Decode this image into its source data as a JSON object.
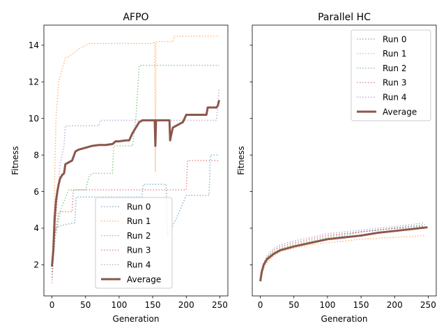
{
  "chart_data": [
    {
      "type": "line",
      "title": "AFPO",
      "xlabel": "Generation",
      "ylabel": "Fitness",
      "xlim": [
        -12,
        262
      ],
      "ylim": [
        0.3,
        15.1
      ],
      "xticks": [
        0,
        50,
        100,
        150,
        200,
        250
      ],
      "yticks": [
        2,
        4,
        6,
        8,
        10,
        12,
        14
      ],
      "legend": "lower-center",
      "series": [
        {
          "name": "Run 0",
          "color": "#1f77b4",
          "style": "dotted",
          "x": [
            0,
            3,
            6,
            10,
            20,
            34,
            36,
            70,
            134,
            136,
            170,
            172,
            185,
            200,
            202,
            234,
            236,
            249
          ],
          "y": [
            2.0,
            3.5,
            4.0,
            4.1,
            4.2,
            4.3,
            5.7,
            5.7,
            5.7,
            6.4,
            6.4,
            3.6,
            4.5,
            5.8,
            5.8,
            5.8,
            8.0,
            8.0
          ]
        },
        {
          "name": "Run 1",
          "color": "#ff7f0e",
          "style": "dotted",
          "x": [
            0,
            3,
            6,
            10,
            20,
            30,
            40,
            55,
            70,
            100,
            150,
            153,
            154,
            155,
            157,
            160,
            180,
            182,
            200,
            249
          ],
          "y": [
            1.6,
            5.0,
            10.0,
            12.0,
            13.3,
            13.5,
            13.8,
            14.1,
            14.1,
            14.1,
            14.1,
            14.2,
            7.1,
            14.2,
            14.2,
            14.2,
            14.2,
            14.5,
            14.5,
            14.5
          ]
        },
        {
          "name": "Run 2",
          "color": "#2ca02c",
          "style": "dotted",
          "x": [
            0,
            5,
            10,
            15,
            25,
            35,
            50,
            55,
            60,
            90,
            92,
            120,
            125,
            130,
            135,
            200,
            249
          ],
          "y": [
            1.6,
            3.5,
            4.5,
            5.2,
            6.1,
            6.1,
            6.1,
            6.8,
            7.0,
            7.0,
            8.5,
            8.5,
            10.0,
            12.9,
            12.9,
            12.9,
            12.9
          ]
        },
        {
          "name": "Run 3",
          "color": "#d62728",
          "style": "dotted",
          "x": [
            0,
            4,
            10,
            30,
            32,
            100,
            200,
            202,
            230,
            249
          ],
          "y": [
            1.3,
            3.5,
            4.9,
            4.9,
            6.1,
            6.1,
            6.1,
            7.7,
            7.7,
            7.7
          ]
        },
        {
          "name": "Run 4",
          "color": "#9467bd",
          "style": "dotted",
          "x": [
            0,
            2,
            4,
            8,
            12,
            18,
            20,
            40,
            70,
            72,
            120,
            150,
            200,
            245,
            249
          ],
          "y": [
            1.0,
            2.5,
            4.0,
            5.5,
            7.5,
            8.5,
            9.6,
            9.6,
            9.6,
            9.9,
            9.9,
            9.9,
            9.9,
            9.9,
            11.6
          ]
        },
        {
          "name": "Average",
          "color": "#8c564b",
          "style": "solid",
          "x": [
            0,
            2,
            4,
            6,
            8,
            10,
            12,
            15,
            18,
            20,
            25,
            30,
            35,
            40,
            50,
            60,
            70,
            80,
            90,
            95,
            100,
            110,
            115,
            120,
            125,
            130,
            135,
            140,
            150,
            153,
            154,
            155,
            156,
            160,
            170,
            175,
            176,
            177,
            180,
            190,
            195,
            200,
            202,
            210,
            220,
            230,
            232,
            240,
            245,
            247,
            249
          ],
          "y": [
            1.9,
            2.8,
            4.5,
            5.5,
            6.0,
            6.4,
            6.7,
            6.9,
            7.0,
            7.5,
            7.6,
            7.7,
            8.2,
            8.3,
            8.4,
            8.5,
            8.55,
            8.55,
            8.6,
            8.75,
            8.75,
            8.8,
            8.8,
            9.2,
            9.5,
            9.8,
            9.9,
            9.9,
            9.9,
            9.9,
            8.5,
            9.9,
            9.9,
            9.9,
            9.9,
            9.9,
            8.8,
            9.0,
            9.5,
            9.7,
            9.8,
            10.2,
            10.2,
            10.2,
            10.2,
            10.2,
            10.6,
            10.6,
            10.6,
            10.7,
            11.0
          ]
        }
      ]
    },
    {
      "type": "line",
      "title": "Parallel HC",
      "xlabel": "Generation",
      "ylabel": "Fitness",
      "xlim": [
        -12,
        262
      ],
      "ylim": [
        0.3,
        15.1
      ],
      "xticks": [
        0,
        50,
        100,
        150,
        200,
        250
      ],
      "yticks": [
        2,
        4,
        6,
        8,
        10,
        12,
        14
      ],
      "legend": "upper-right",
      "series": [
        {
          "name": "Run 0",
          "color": "#1f77b4",
          "style": "dotted",
          "x": [
            0,
            2,
            5,
            10,
            20,
            30,
            50,
            75,
            100,
            125,
            150,
            175,
            200,
            225,
            245
          ],
          "y": [
            1.2,
            1.6,
            2.0,
            2.3,
            2.6,
            2.8,
            3.0,
            3.2,
            3.4,
            3.6,
            3.8,
            3.9,
            4.0,
            4.1,
            4.2
          ]
        },
        {
          "name": "Run 1",
          "color": "#ff7f0e",
          "style": "dotted",
          "x": [
            0,
            2,
            5,
            10,
            20,
            30,
            50,
            75,
            100,
            125,
            150,
            175,
            200,
            225,
            245
          ],
          "y": [
            1.1,
            1.4,
            1.8,
            2.1,
            2.5,
            2.7,
            2.9,
            3.1,
            3.2,
            3.3,
            3.4,
            3.45,
            3.5,
            3.55,
            3.6
          ]
        },
        {
          "name": "Run 2",
          "color": "#2ca02c",
          "style": "dotted",
          "x": [
            0,
            2,
            5,
            10,
            20,
            30,
            50,
            75,
            100,
            125,
            150,
            175,
            200,
            225,
            245
          ],
          "y": [
            1.3,
            1.7,
            2.1,
            2.4,
            2.7,
            2.9,
            3.1,
            3.3,
            3.5,
            3.7,
            3.8,
            3.9,
            4.0,
            4.1,
            4.1
          ]
        },
        {
          "name": "Run 3",
          "color": "#d62728",
          "style": "dotted",
          "x": [
            0,
            2,
            5,
            10,
            20,
            30,
            50,
            75,
            100,
            125,
            150,
            175,
            200,
            225,
            245
          ],
          "y": [
            1.2,
            1.6,
            2.0,
            2.4,
            2.8,
            3.0,
            3.2,
            3.4,
            3.6,
            3.7,
            3.8,
            3.9,
            4.0,
            4.0,
            4.1
          ]
        },
        {
          "name": "Run 4",
          "color": "#9467bd",
          "style": "dotted",
          "x": [
            0,
            2,
            5,
            10,
            20,
            30,
            50,
            75,
            100,
            125,
            150,
            175,
            200,
            225,
            245
          ],
          "y": [
            1.3,
            1.7,
            2.1,
            2.5,
            2.9,
            3.1,
            3.3,
            3.5,
            3.7,
            3.8,
            3.9,
            4.0,
            4.1,
            4.2,
            4.3
          ]
        },
        {
          "name": "Average",
          "color": "#8c564b",
          "style": "solid",
          "x": [
            0,
            2,
            5,
            10,
            20,
            30,
            50,
            75,
            100,
            125,
            150,
            175,
            200,
            225,
            249
          ],
          "y": [
            1.1,
            1.6,
            2.0,
            2.3,
            2.6,
            2.8,
            3.0,
            3.2,
            3.4,
            3.5,
            3.6,
            3.75,
            3.85,
            3.95,
            4.05
          ]
        }
      ]
    }
  ]
}
